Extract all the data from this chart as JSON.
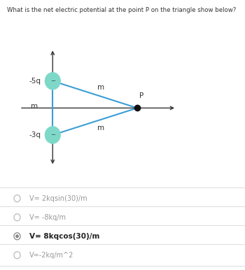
{
  "question": "What is the net electric potential at the point P on the triangle show below?",
  "triangle": {
    "top_charge_label": "-5q",
    "bottom_charge_label": "-3q",
    "point_label": "P",
    "charge_color": "#7dd8c8",
    "line_color": "#3b9ed4",
    "axis_color": "#333333",
    "point_color": "#111111"
  },
  "answers": [
    {
      "text": "V= 2kqsin(30)/m",
      "selected": false
    },
    {
      "text": "V= -8kq/m",
      "selected": false
    },
    {
      "text": "V= 8kqcos(30)/m",
      "selected": true
    },
    {
      "text": "V=-2kq/m^2",
      "selected": false
    }
  ],
  "answer_line_color": "#dddddd",
  "radio_color": "#bbbbbb",
  "selected_radio_fill": "#888888",
  "selected_text_color": "#222222",
  "unselected_text_color": "#999999",
  "question_color": "#333333",
  "fig_width": 3.5,
  "fig_height": 3.86,
  "dpi": 100
}
